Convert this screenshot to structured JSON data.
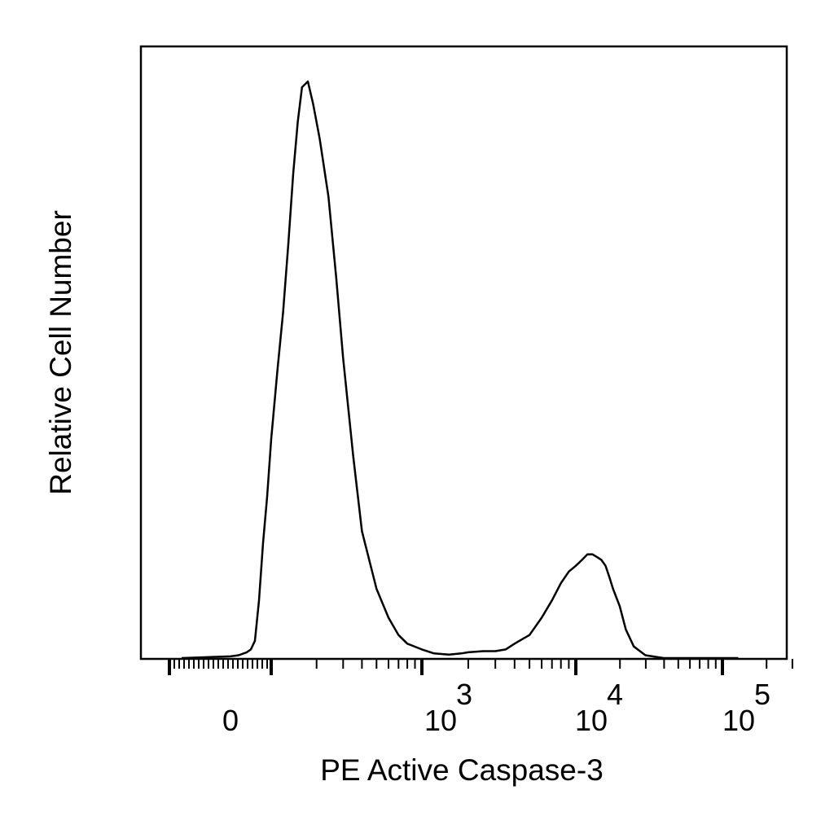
{
  "chart_data": {
    "type": "line",
    "title": "",
    "xlabel": "PE Active Caspase-3",
    "ylabel": "Relative Cell Number",
    "x_scale": "biexponential",
    "x_ticks": [
      {
        "value": 0,
        "base": "0",
        "exp": ""
      },
      {
        "value": 1000,
        "base": "10",
        "exp": "3"
      },
      {
        "value": 10000,
        "base": "10",
        "exp": "4"
      },
      {
        "value": 100000,
        "base": "10",
        "exp": "5"
      }
    ],
    "y_range": [
      0,
      100
    ],
    "grid": false,
    "legend": "none",
    "line_color": "#000000",
    "series": [
      {
        "x": [
          -60,
          0,
          20,
          40,
          50,
          60,
          70,
          80,
          90,
          100,
          110,
          120,
          130,
          140,
          150,
          160,
          175,
          190,
          210,
          240,
          270,
          300,
          350,
          400,
          500,
          600,
          700,
          800,
          1000,
          1200,
          1500,
          1800,
          2000,
          2500,
          3000,
          3500,
          4000,
          5000,
          6000,
          7000,
          8000,
          9000,
          10000,
          11000,
          12000,
          13000,
          14000,
          15000,
          16000,
          17000,
          18000,
          20000,
          22000,
          25000,
          30000,
          40000,
          60000,
          100000,
          130000
        ],
        "y": [
          0,
          0.3,
          0.5,
          1.0,
          1.5,
          3,
          10,
          20,
          28,
          38,
          50,
          60,
          72,
          84,
          93,
          99,
          100,
          96,
          90,
          80,
          66,
          52,
          35,
          22,
          12,
          7,
          4,
          2.5,
          1.5,
          0.8,
          0.6,
          0.8,
          1.0,
          1.2,
          1.2,
          1.5,
          2.5,
          4,
          7,
          10,
          13,
          15,
          16,
          17,
          18,
          18,
          17.5,
          17,
          16,
          14,
          12,
          9,
          5,
          2,
          0.5,
          0,
          0,
          0,
          0
        ]
      }
    ]
  }
}
